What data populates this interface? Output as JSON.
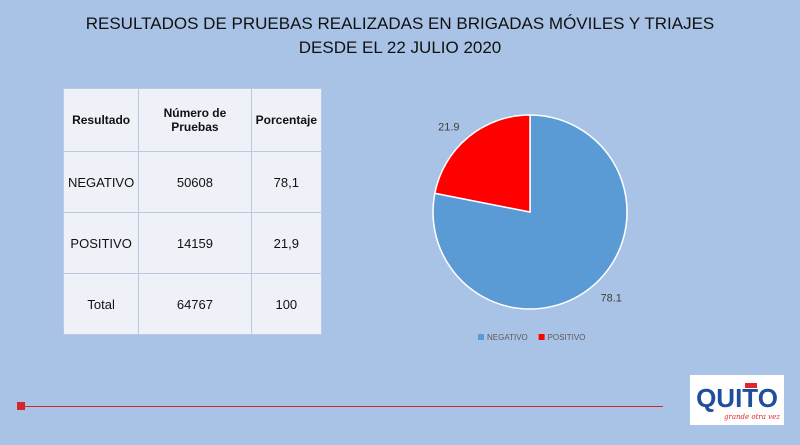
{
  "header": {
    "title_line1": "RESULTADOS DE PRUEBAS REALIZADAS EN BRIGADAS MÓVILES Y TRIAJES",
    "title_line2": "DESDE EL 22 JULIO 2020"
  },
  "table": {
    "headers": [
      "Resultado",
      "Número de Pruebas",
      "Porcentaje"
    ],
    "rows": [
      [
        "NEGATIVO",
        "50608",
        "78,1"
      ],
      [
        "POSITIVO",
        "14159",
        "21,9"
      ],
      [
        "Total",
        "64767",
        "100"
      ]
    ]
  },
  "chart_data": {
    "type": "pie",
    "categories": [
      "NEGATIVO",
      "POSITIVO"
    ],
    "values": [
      78.1,
      21.9
    ],
    "data_labels": [
      "78.1",
      "21.9"
    ],
    "colors": [
      "#5b9bd5",
      "#ff0000"
    ],
    "legend_position": "bottom"
  },
  "logo": {
    "text": "QUITO",
    "tagline": "grande otra vez",
    "colors": {
      "blue": "#1f4e9c",
      "red": "#e3262d"
    }
  },
  "colors": {
    "background": "#a9c3e6",
    "accent_red": "#d6242b"
  }
}
